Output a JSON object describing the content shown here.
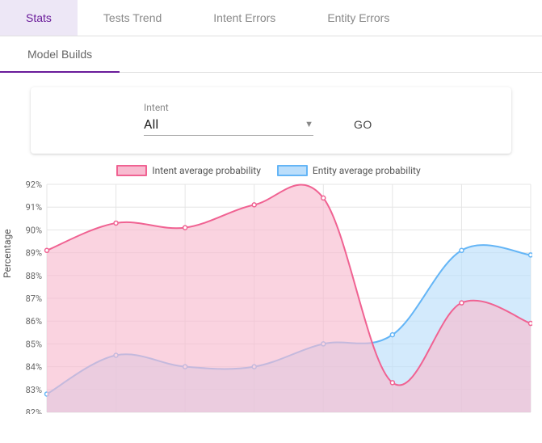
{
  "tabs": {
    "items": [
      "Stats",
      "Tests Trend",
      "Intent Errors",
      "Entity Errors"
    ],
    "activeIndex": 0
  },
  "subtabs": {
    "items": [
      "Model Builds"
    ],
    "activeIndex": 0
  },
  "filter": {
    "label": "Intent",
    "value": "All",
    "go_label": "GO"
  },
  "chart": {
    "type": "area",
    "ylabel": "Percentage",
    "ylim": [
      82,
      92
    ],
    "ytick_step": 1,
    "y_ticks": [
      "92%",
      "91%",
      "90%",
      "89%",
      "88%",
      "87%",
      "86%",
      "85%",
      "84%",
      "83%",
      "82%"
    ],
    "grid_color": "#e5e5e5",
    "background_color": "#ffffff",
    "legend": [
      {
        "label": "Intent average probability",
        "stroke": "#f06292",
        "fill": "#f8bbd0"
      },
      {
        "label": "Entity average probability",
        "stroke": "#64b5f6",
        "fill": "#bbdefb"
      }
    ],
    "x_count": 8,
    "series": {
      "intent": [
        89.1,
        90.3,
        90.1,
        91.1,
        91.4,
        83.3,
        86.8,
        85.9
      ],
      "entity": [
        82.8,
        84.5,
        84.0,
        84.0,
        85.0,
        85.4,
        89.1,
        88.9
      ]
    },
    "label_fontsize": 12,
    "tick_fontsize": 11,
    "marker_radius": 2.5,
    "line_width": 2
  }
}
